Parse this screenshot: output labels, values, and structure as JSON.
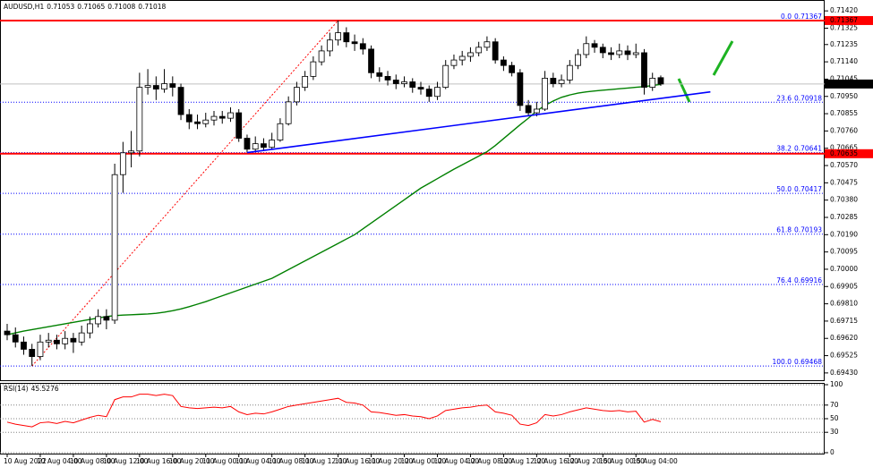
{
  "chart_data": {
    "type": "candlestick",
    "title": "AUDUSD,H1",
    "categories": [
      "10 Aug 2022",
      null,
      null,
      null,
      "10 Aug 04:00",
      null,
      null,
      null,
      "10 Aug 08:00",
      null,
      null,
      null,
      "10 Aug 12:00",
      null,
      null,
      null,
      "10 Aug 16:00",
      null,
      null,
      null,
      "10 Aug 20:00",
      null,
      null,
      null,
      "11 Aug 00:00",
      null,
      null,
      null,
      "11 Aug 04:00",
      null,
      null,
      null,
      "11 Aug 08:00",
      null,
      null,
      null,
      "11 Aug 12:00",
      null,
      null,
      null,
      "11 Aug 16:00",
      null,
      null,
      null,
      "11 Aug 20:00",
      null,
      null,
      null,
      "12 Aug 00:00",
      null,
      null,
      null,
      "12 Aug 04:00",
      null,
      null,
      null,
      "12 Aug 08:00",
      null,
      null,
      null,
      "12 Aug 12:00",
      null,
      null,
      null,
      "12 Aug 16:00",
      null,
      null,
      null,
      "12 Aug 20:00",
      null,
      null,
      null,
      "15 Aug 00:00",
      null,
      null,
      null,
      "15 Aug 04:00",
      null,
      null,
      null
    ],
    "candles": [
      [
        0.6966,
        0.697,
        0.6961,
        0.6964
      ],
      [
        0.6964,
        0.6968,
        0.6957,
        0.696
      ],
      [
        0.696,
        0.6963,
        0.6953,
        0.6956
      ],
      [
        0.6956,
        0.6959,
        0.69468,
        0.6952
      ],
      [
        0.6952,
        0.6964,
        0.695,
        0.696
      ],
      [
        0.696,
        0.6965,
        0.6957,
        0.6961
      ],
      [
        0.6961,
        0.6964,
        0.6956,
        0.6959
      ],
      [
        0.6959,
        0.6966,
        0.6956,
        0.6962
      ],
      [
        0.6962,
        0.6965,
        0.6954,
        0.696
      ],
      [
        0.696,
        0.6969,
        0.6958,
        0.6965
      ],
      [
        0.6965,
        0.6974,
        0.6962,
        0.697
      ],
      [
        0.697,
        0.6978,
        0.6968,
        0.6974
      ],
      [
        0.6974,
        0.6978,
        0.6967,
        0.6972
      ],
      [
        0.6972,
        0.7058,
        0.697,
        0.7052
      ],
      [
        0.7052,
        0.707,
        0.7042,
        0.7064
      ],
      [
        0.7064,
        0.7076,
        0.7056,
        0.7065
      ],
      [
        0.7065,
        0.7108,
        0.7062,
        0.71
      ],
      [
        0.71,
        0.711,
        0.7096,
        0.7101
      ],
      [
        0.7101,
        0.7106,
        0.7093,
        0.7099
      ],
      [
        0.7099,
        0.711,
        0.7097,
        0.7102
      ],
      [
        0.7102,
        0.7106,
        0.7095,
        0.71
      ],
      [
        0.71,
        0.7102,
        0.7082,
        0.7085
      ],
      [
        0.7085,
        0.7088,
        0.7077,
        0.7081
      ],
      [
        0.7081,
        0.7085,
        0.7077,
        0.708
      ],
      [
        0.708,
        0.7086,
        0.7078,
        0.7082
      ],
      [
        0.7082,
        0.7087,
        0.7079,
        0.7084
      ],
      [
        0.7084,
        0.7087,
        0.708,
        0.7083
      ],
      [
        0.7083,
        0.7089,
        0.7081,
        0.7086
      ],
      [
        0.7086,
        0.7088,
        0.707,
        0.7072
      ],
      [
        0.7072,
        0.7074,
        0.70641,
        0.7066
      ],
      [
        0.7066,
        0.7073,
        0.7065,
        0.7069
      ],
      [
        0.7069,
        0.7072,
        0.7065,
        0.7067
      ],
      [
        0.7067,
        0.7075,
        0.7066,
        0.7071
      ],
      [
        0.7071,
        0.7083,
        0.707,
        0.708
      ],
      [
        0.708,
        0.7095,
        0.7079,
        0.7092
      ],
      [
        0.7092,
        0.7103,
        0.709,
        0.71
      ],
      [
        0.71,
        0.7109,
        0.7098,
        0.7106
      ],
      [
        0.7106,
        0.7117,
        0.7104,
        0.7114
      ],
      [
        0.7114,
        0.7123,
        0.7112,
        0.712
      ],
      [
        0.712,
        0.713,
        0.7117,
        0.7126
      ],
      [
        0.7126,
        0.71367,
        0.7123,
        0.713
      ],
      [
        0.713,
        0.7133,
        0.7122,
        0.7125
      ],
      [
        0.7125,
        0.7129,
        0.712,
        0.7124
      ],
      [
        0.7124,
        0.7127,
        0.7118,
        0.7121
      ],
      [
        0.7121,
        0.7123,
        0.7105,
        0.7108
      ],
      [
        0.7108,
        0.7111,
        0.7103,
        0.7106
      ],
      [
        0.7106,
        0.7109,
        0.7101,
        0.7104
      ],
      [
        0.7104,
        0.7107,
        0.7099,
        0.7102
      ],
      [
        0.7102,
        0.7106,
        0.71,
        0.7103
      ],
      [
        0.7103,
        0.7105,
        0.7097,
        0.71
      ],
      [
        0.71,
        0.7103,
        0.7096,
        0.7099
      ],
      [
        0.7099,
        0.7101,
        0.7092,
        0.7095
      ],
      [
        0.7095,
        0.7103,
        0.7093,
        0.71
      ],
      [
        0.71,
        0.7115,
        0.7099,
        0.7112
      ],
      [
        0.7112,
        0.7118,
        0.711,
        0.7115
      ],
      [
        0.7115,
        0.712,
        0.7112,
        0.7117
      ],
      [
        0.7117,
        0.7122,
        0.7114,
        0.7119
      ],
      [
        0.7119,
        0.7125,
        0.7117,
        0.7122
      ],
      [
        0.7122,
        0.7128,
        0.712,
        0.7125
      ],
      [
        0.7125,
        0.7127,
        0.7113,
        0.7115
      ],
      [
        0.7115,
        0.7117,
        0.7109,
        0.7112
      ],
      [
        0.7112,
        0.7114,
        0.7106,
        0.7108
      ],
      [
        0.7108,
        0.711,
        0.7087,
        0.709
      ],
      [
        0.709,
        0.7093,
        0.7084,
        0.7086
      ],
      [
        0.7086,
        0.7092,
        0.7084,
        0.7088
      ],
      [
        0.7088,
        0.7109,
        0.7087,
        0.7105
      ],
      [
        0.7105,
        0.7108,
        0.71,
        0.7102
      ],
      [
        0.7102,
        0.7107,
        0.71,
        0.7104
      ],
      [
        0.7104,
        0.7115,
        0.7102,
        0.7112
      ],
      [
        0.7112,
        0.7121,
        0.711,
        0.7118
      ],
      [
        0.7118,
        0.7128,
        0.7116,
        0.7124
      ],
      [
        0.7124,
        0.7126,
        0.7119,
        0.7122
      ],
      [
        0.7122,
        0.7124,
        0.7116,
        0.7119
      ],
      [
        0.7119,
        0.7122,
        0.7115,
        0.7118
      ],
      [
        0.7118,
        0.7124,
        0.7116,
        0.712
      ],
      [
        0.712,
        0.7123,
        0.7115,
        0.7118
      ],
      [
        0.7118,
        0.7124,
        0.7116,
        0.7119
      ],
      [
        0.7119,
        0.7121,
        0.7096,
        0.71
      ],
      [
        0.71,
        0.7108,
        0.7098,
        0.7105
      ],
      [
        0.71053,
        0.71065,
        0.71008,
        0.71018
      ]
    ],
    "colors": {
      "up": "#ffffff",
      "down": "#000000",
      "outline": "#000000"
    },
    "ylim": [
      0.6939,
      0.7147
    ],
    "yticks": [
      {
        "value": 0.7142,
        "label": "0.71420"
      },
      0.71325,
      0.71235,
      {
        "value": 0.7114,
        "label": "0.71140"
      },
      0.71045,
      {
        "value": 0.7095,
        "label": "0.70950"
      },
      0.70855,
      {
        "value": 0.7076,
        "label": "0.70760"
      },
      0.70665,
      {
        "value": 0.7057,
        "label": "0.70570"
      },
      0.70475,
      {
        "value": 0.7038,
        "label": "0.70380"
      },
      0.70285,
      {
        "value": 0.7019,
        "label": "0.70190"
      },
      0.70095,
      {
        "value": 0.7,
        "label": "0.70000"
      },
      0.69905,
      {
        "value": 0.6981,
        "label": "0.69810"
      },
      0.69715,
      {
        "value": 0.6962,
        "label": "0.69620"
      },
      0.69525,
      {
        "value": 0.6943,
        "label": "0.69430"
      }
    ],
    "grid": false,
    "ma": {
      "color": "#008000",
      "values": [
        0.6964,
        0.6965,
        0.6966,
        0.69668,
        0.69676,
        0.69684,
        0.69692,
        0.697,
        0.69708,
        0.69716,
        0.69724,
        0.69732,
        0.6974,
        0.69745,
        0.69748,
        0.6975,
        0.69752,
        0.69754,
        0.69758,
        0.69764,
        0.69772,
        0.69782,
        0.69794,
        0.69808,
        0.69822,
        0.69838,
        0.69854,
        0.6987,
        0.69886,
        0.69902,
        0.69918,
        0.69934,
        0.6995,
        0.69974,
        0.69998,
        0.70022,
        0.70046,
        0.7007,
        0.70094,
        0.70118,
        0.70142,
        0.70166,
        0.7019,
        0.70222,
        0.70254,
        0.70286,
        0.70318,
        0.7035,
        0.70382,
        0.70414,
        0.70446,
        0.70472,
        0.70498,
        0.70524,
        0.7055,
        0.70574,
        0.70598,
        0.70622,
        0.70646,
        0.7068,
        0.70718,
        0.70756,
        0.70794,
        0.7083,
        0.7087,
        0.709,
        0.70925,
        0.70945,
        0.70958,
        0.70968,
        0.70975,
        0.7098,
        0.70984,
        0.70988,
        0.70992,
        0.70996,
        0.71,
        0.71004,
        0.7101,
        0.71016
      ]
    },
    "trendline": {
      "color": "#0000ff",
      "x": [
        29,
        85
      ],
      "y": [
        0.70641,
        0.70975
      ]
    },
    "fib_line": {
      "color": "#ff0000",
      "x": [
        3,
        40
      ],
      "y": [
        0.69468,
        0.71367
      ]
    },
    "fib_color": "#0000ff",
    "fib_levels": [
      {
        "level": "0.0",
        "value": 0.71367
      },
      {
        "level": "23.6",
        "value": 0.70918
      },
      {
        "level": "38.2",
        "value": 0.70641
      },
      {
        "level": "50.0",
        "value": 0.70417
      },
      {
        "level": "61.8",
        "value": 0.70193
      },
      {
        "level": "76.4",
        "value": 0.69916
      },
      {
        "level": "100.0",
        "value": 0.69468
      }
    ],
    "hlines": [
      {
        "value": 0.71367,
        "color": "#ff0000"
      },
      {
        "value": 0.70635,
        "color": "#ff0000"
      }
    ],
    "rsi": {
      "title": "RSI(14)",
      "color": "#ff0000",
      "ylim": [
        0,
        100
      ],
      "yticks": [
        100,
        70,
        50,
        30,
        0
      ],
      "values": [
        45,
        42,
        40,
        38,
        44,
        45,
        43,
        46,
        44,
        48,
        52,
        55,
        53,
        78,
        82,
        82,
        86,
        86,
        84,
        86,
        84,
        68,
        66,
        65,
        66,
        67,
        66,
        68,
        60,
        56,
        58,
        57,
        60,
        64,
        68,
        70,
        72,
        74,
        76,
        78,
        80,
        74,
        73,
        70,
        60,
        59,
        57,
        55,
        56,
        54,
        53,
        50,
        54,
        62,
        64,
        66,
        67,
        69,
        70,
        60,
        58,
        55,
        42,
        40,
        44,
        56,
        54,
        56,
        60,
        63,
        66,
        64,
        62,
        61,
        62,
        60,
        61,
        45,
        49,
        45.5276
      ]
    }
  }
}
